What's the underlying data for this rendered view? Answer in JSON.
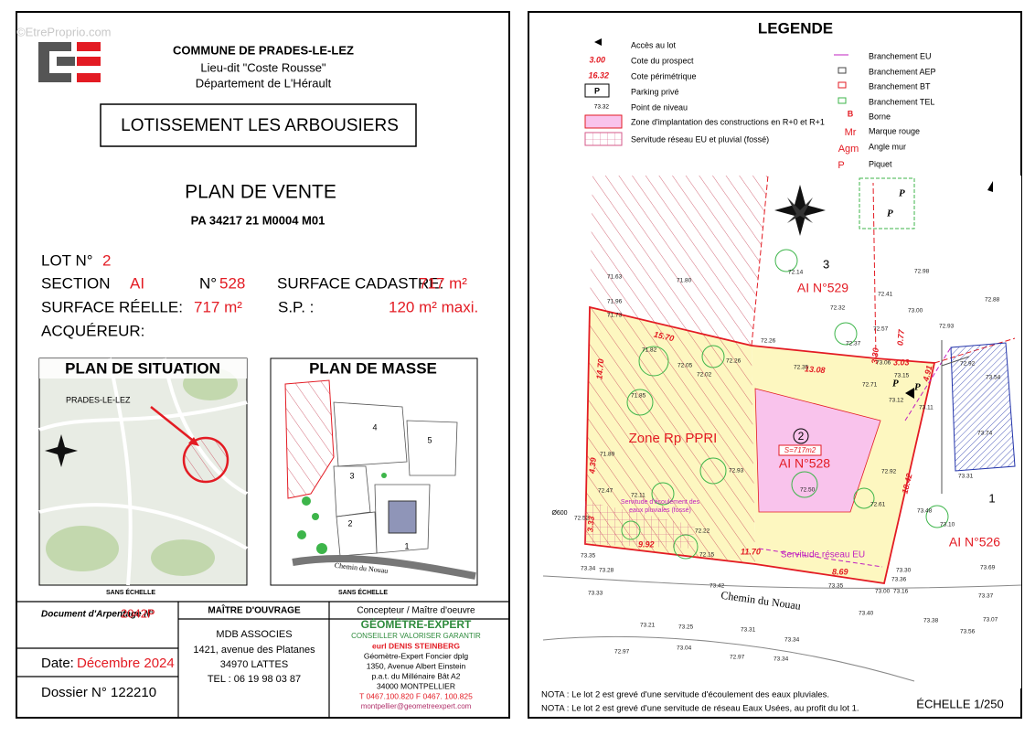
{
  "watermark": "©EtreProprio.com",
  "header": {
    "commune": "COMMUNE DE PRADES-LE-LEZ",
    "lieu_dit": "Lieu-dit \"Coste Rousse\"",
    "departement": "Département de L'Hérault"
  },
  "project": "LOTISSEMENT LES ARBOUSIERS",
  "plan_title": "PLAN DE VENTE",
  "reference": "PA 34217 21 M0004 M01",
  "lot": {
    "lot_label": "LOT N°",
    "lot_number": "2",
    "section_label": "SECTION",
    "section": "AI",
    "parcel_label": "N°",
    "parcel": "528",
    "surface_cadastre_label": "SURFACE CADASTRE:",
    "surface_cadastre": "717 m²",
    "surface_reelle_label": "SURFACE RÉELLE:",
    "surface_reelle": "717 m²",
    "sp_label": "S.P. :",
    "sp": "120 m² maxi.",
    "acquereur_label": "ACQUÉREUR:"
  },
  "situation": {
    "title": "PLAN DE SITUATION",
    "town": "PRADES-LE-LEZ",
    "scale": "SANS ÉCHELLE"
  },
  "masse": {
    "title": "PLAN DE MASSE",
    "lots": [
      "4",
      "5",
      "3",
      "2",
      "1"
    ],
    "road": "Chemin du Nouau",
    "scale": "SANS ÉCHELLE"
  },
  "footer": {
    "arpentage_label": "Document d'Arpentage N°",
    "arpentage": "2042P",
    "date_label": "Date:",
    "date": "Décembre 2024",
    "dossier": "Dossier N° 122210",
    "owner": {
      "title": "MAÎTRE D'OUVRAGE",
      "name": "MDB ASSOCIES",
      "address": "1421, avenue des Platanes",
      "city": "34970 LATTES",
      "tel": "TEL : 06 19 98 03 87"
    },
    "designer": {
      "title": "Concepteur / Maître d'oeuvre",
      "brand": "GÉOMÈTRE-EXPERT",
      "slogan": "CONSEILLER VALORISER GARANTIR",
      "firm": "eurl DENIS STEINBERG",
      "qualification": "Géomètre-Expert Foncier dplg",
      "address1": "1350, Avenue Albert Einstein",
      "address2": "p.a.t. du Millénaire Bât A2",
      "city": "34000 MONTPELLIER",
      "phone": "T 0467.100.820  F 0467. 100.825",
      "email": "montpellier@geometreexpert.com"
    }
  },
  "legend": {
    "title": "LEGENDE",
    "left": [
      {
        "label": "Accès au lot"
      },
      {
        "symbol": "3.00",
        "label": "Cote du prospect"
      },
      {
        "symbol": "16.32",
        "label": "Cote périmétrique"
      },
      {
        "symbol": "P",
        "label": "Parking privé"
      },
      {
        "symbol": "73.32",
        "label": "Point de niveau"
      },
      {
        "label": "Zone d'implantation des constructions en R+0 et R+1"
      },
      {
        "label": "Servitude réseau EU et pluvial (fossé)"
      }
    ],
    "right": [
      {
        "label": "Branchement EU"
      },
      {
        "label": "Branchement AEP"
      },
      {
        "label": "Branchement BT"
      },
      {
        "label": "Branchement TEL"
      },
      {
        "symbol": "B",
        "label": "Borne"
      },
      {
        "symbol": "Mr",
        "label": "Marque rouge"
      },
      {
        "symbol": "Agm",
        "label": "Angle mur"
      },
      {
        "symbol": "P",
        "label": "Piquet"
      }
    ]
  },
  "plan": {
    "lot3": "3",
    "lot3_parcel": "AI N°529",
    "lot2": "2",
    "lot2_area": "S=717m2",
    "lot2_parcel": "AI N°528",
    "lot1": "1",
    "lot1_parcel": "AI N°526",
    "zone": "Zone Rp PPRI",
    "servitude_ep": [
      "Servitude d'écoulement des",
      "eaux pluviales (fossé)"
    ],
    "servitude_eu": "Servitude réseau EU",
    "road": "Chemin du Nouau",
    "pipe": "Ø600",
    "parking": [
      "P",
      "P",
      "P",
      "P"
    ],
    "dimensions": [
      "15.70",
      "13.08",
      "14.70",
      "4.39",
      "3.33",
      "9.92",
      "11.70",
      "8.69",
      "18.42",
      "3.03",
      "4.91",
      "3.30",
      "0.77"
    ],
    "spot_heights": [
      "71.63",
      "71.80",
      "71.96",
      "71.73",
      "72.14",
      "72.41",
      "72.32",
      "72.98",
      "72.88",
      "73.00",
      "72.57",
      "72.93",
      "72.26",
      "72.37",
      "73.06",
      "72.35",
      "72.71",
      "73.15",
      "73.12",
      "73.11",
      "72.92",
      "73.54",
      "73.74",
      "73.31",
      "72.92",
      "72.61",
      "72.50",
      "72.93",
      "73.48",
      "73.10",
      "71.89",
      "72.47",
      "72.11",
      "72.52",
      "72.22",
      "72.15",
      "73.30",
      "73.36",
      "73.00",
      "73.16",
      "73.37",
      "73.35",
      "73.34",
      "73.28",
      "73.33",
      "73.42",
      "73.35",
      "73.40",
      "73.38",
      "73.56",
      "73.07",
      "73.21",
      "73.25",
      "73.31",
      "73.34",
      "73.04",
      "72.97",
      "72.97",
      "73.34",
      "73.69",
      "71.82",
      "72.05",
      "72.02",
      "72.26",
      "71.85"
    ]
  },
  "notes": [
    "NOTA : Le lot 2 est grevé d'une servitude d'écoulement des eaux pluviales.",
    "NOTA : Le lot 2 est grevé d'une servitude de réseau Eaux Usées, au profit du lot 1."
  ],
  "scale": "ÉCHELLE 1/250"
}
